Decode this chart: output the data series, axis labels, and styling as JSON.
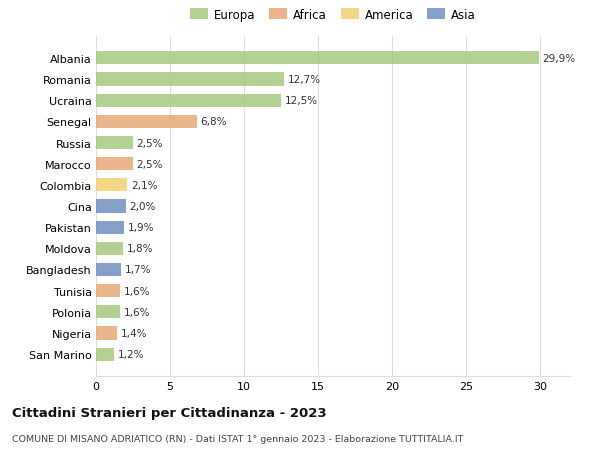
{
  "countries": [
    "Albania",
    "Romania",
    "Ucraina",
    "Senegal",
    "Russia",
    "Marocco",
    "Colombia",
    "Cina",
    "Pakistan",
    "Moldova",
    "Bangladesh",
    "Tunisia",
    "Polonia",
    "Nigeria",
    "San Marino"
  ],
  "values": [
    29.9,
    12.7,
    12.5,
    6.8,
    2.5,
    2.5,
    2.1,
    2.0,
    1.9,
    1.8,
    1.7,
    1.6,
    1.6,
    1.4,
    1.2
  ],
  "labels": [
    "29,9%",
    "12,7%",
    "12,5%",
    "6,8%",
    "2,5%",
    "2,5%",
    "2,1%",
    "2,0%",
    "1,9%",
    "1,8%",
    "1,7%",
    "1,6%",
    "1,6%",
    "1,4%",
    "1,2%"
  ],
  "continents": [
    "Europa",
    "Europa",
    "Europa",
    "Africa",
    "Europa",
    "Africa",
    "America",
    "Asia",
    "Asia",
    "Europa",
    "Asia",
    "Africa",
    "Europa",
    "Africa",
    "Europa"
  ],
  "colors": {
    "Europa": "#a8c880",
    "Africa": "#e8a878",
    "America": "#f0d070",
    "Asia": "#7090c0"
  },
  "title": "Cittadini Stranieri per Cittadinanza - 2023",
  "subtitle": "COMUNE DI MISANO ADRIATICO (RN) - Dati ISTAT 1° gennaio 2023 - Elaborazione TUTTITALIA.IT",
  "xlim": [
    0,
    32
  ],
  "xticks": [
    0,
    5,
    10,
    15,
    20,
    25,
    30
  ],
  "background_color": "#ffffff",
  "grid_color": "#dddddd",
  "legend_order": [
    "Europa",
    "Africa",
    "America",
    "Asia"
  ]
}
